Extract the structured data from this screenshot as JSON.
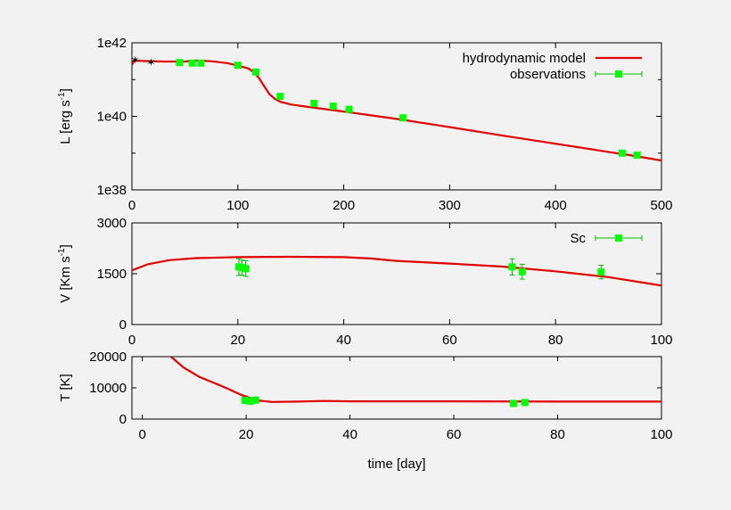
{
  "colors": {
    "model": "#e00000",
    "obs": "#00ff00",
    "obs_edge": "#00c000",
    "early_obs": "#2222cc",
    "background": "#f2f2f2"
  },
  "chart_data": [
    {
      "type": "line",
      "panel": "luminosity",
      "ylabel": "L [erg s-1]",
      "ylabel_main": "L [erg s",
      "ylabel_sup": "-1",
      "ylabel_end": "]",
      "yscale": "log",
      "xlim": [
        0,
        500
      ],
      "ylim": [
        1e+38,
        1e+42
      ],
      "x_ticks": [
        "0",
        "100",
        "200",
        "300",
        "400",
        "500"
      ],
      "y_ticks": [
        "1e38",
        "1e40",
        "1e42"
      ],
      "legend_position": "top-right",
      "series": [
        {
          "name": "hydrodynamic model",
          "kind": "line",
          "x": [
            0,
            2,
            10,
            30,
            50,
            60,
            75,
            90,
            100,
            110,
            115,
            120,
            125,
            130,
            135,
            140,
            150,
            170,
            200,
            250,
            300,
            350,
            400,
            450,
            470,
            500
          ],
          "y": [
            2.5e+41,
            3.3e+41,
            3.2e+41,
            3.1e+41,
            3.1e+41,
            3.3e+41,
            3.15e+41,
            2.8e+41,
            2.4e+41,
            2e+41,
            1.6e+41,
            1.1e+41,
            6.5e+40,
            4e+40,
            3e+40,
            2.5e+40,
            2.1e+40,
            1.75e+40,
            1.35e+40,
            8.5e+39,
            5.1e+39,
            3e+39,
            1.8e+39,
            1.08e+39,
            8.8e+38,
            6.3e+38
          ]
        },
        {
          "name": "observations",
          "kind": "points",
          "x": [
            45,
            57,
            65,
            100,
            117,
            140,
            172,
            190,
            205,
            256,
            463,
            477
          ],
          "y": [
            2.9e+41,
            2.8e+41,
            2.8e+41,
            2.45e+41,
            1.6e+41,
            3.5e+40,
            2.25e+40,
            1.9e+40,
            1.55e+40,
            9.1e+39,
            1e+39,
            8.8e+38
          ]
        },
        {
          "kind": "stars",
          "x": [
            3,
            18
          ],
          "y": [
            3.4e+41,
            2.9e+41
          ]
        }
      ]
    },
    {
      "type": "line",
      "panel": "velocity",
      "ylabel": "V [Km s-1]",
      "ylabel_main": "V [Km s",
      "ylabel_sup": "-1",
      "ylabel_end": "]",
      "xlim": [
        0,
        100
      ],
      "ylim": [
        0,
        3000
      ],
      "x_ticks": [
        "0",
        "20",
        "40",
        "60",
        "80",
        "100"
      ],
      "y_ticks": [
        "0",
        "1500",
        "3000"
      ],
      "legend_position": "top-right",
      "series": [
        {
          "kind": "line",
          "x": [
            0,
            3,
            7,
            12,
            20,
            30,
            40,
            45,
            50,
            60,
            70,
            80,
            90,
            100
          ],
          "y": [
            1600,
            1780,
            1900,
            1960,
            1990,
            2000,
            1990,
            1950,
            1880,
            1800,
            1710,
            1570,
            1400,
            1150
          ]
        },
        {
          "name": "Sc",
          "kind": "points",
          "x": [
            20.2,
            20.8,
            21.5,
            71.8,
            73.7,
            88.6
          ],
          "y": [
            1700,
            1680,
            1650,
            1700,
            1560,
            1550
          ],
          "err": [
            250,
            220,
            230,
            240,
            220,
            200
          ]
        }
      ]
    },
    {
      "type": "line",
      "panel": "temperature",
      "ylabel": "T [K]",
      "xlabel": "time [day]",
      "xlim": [
        -2,
        100
      ],
      "ylim": [
        0,
        20000
      ],
      "x_ticks": [
        "0",
        "20",
        "40",
        "60",
        "80",
        "100"
      ],
      "y_ticks": [
        "0",
        "10000",
        "20000"
      ],
      "series": [
        {
          "kind": "line",
          "x": [
            5.5,
            8,
            11,
            15,
            19,
            22,
            25,
            30,
            35,
            40,
            50,
            60,
            80,
            100
          ],
          "y": [
            20000,
            16500,
            13500,
            10800,
            7800,
            6000,
            5500,
            5600,
            5800,
            5700,
            5700,
            5700,
            5600,
            5600
          ]
        },
        {
          "kind": "points",
          "x": [
            19.8,
            20.8,
            21.8,
            71.5,
            73.7
          ],
          "y": [
            6000,
            5700,
            6100,
            5000,
            5300
          ]
        }
      ]
    }
  ]
}
